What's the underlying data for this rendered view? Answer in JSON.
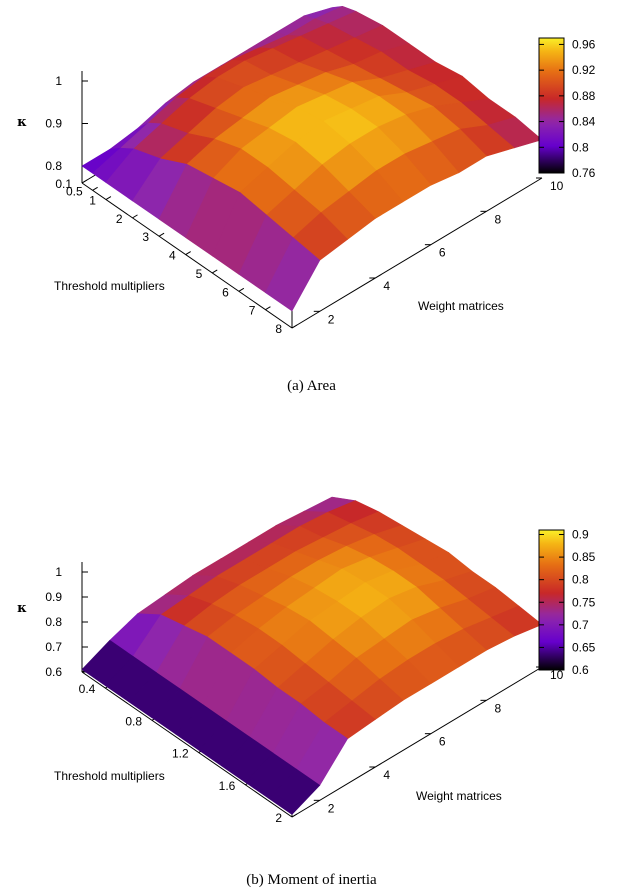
{
  "chart_data": [
    {
      "type": "surface3d",
      "caption": "(a) Area",
      "zlabel": "κ",
      "xlabel": "Threshold multipliers",
      "ylabel": "Weight matrices",
      "x_ticks": [
        "0.1",
        "0.5",
        "1",
        "2",
        "3",
        "4",
        "5",
        "6",
        "7",
        "8"
      ],
      "y_ticks": [
        "2",
        "4",
        "6",
        "8",
        "10"
      ],
      "z_ticks": [
        "0.8",
        "0.9",
        "1"
      ],
      "x_range": [
        0.1,
        8
      ],
      "y_range": [
        1,
        10
      ],
      "zlim": [
        0.76,
        1.0
      ],
      "colorbar": {
        "ticks": [
          "0.96",
          "0.92",
          "0.88",
          "0.84",
          "0.8",
          "0.76"
        ],
        "range": [
          0.76,
          0.97
        ],
        "palette": "black-purple-red-orange-yellow"
      },
      "x": [
        0.1,
        0.5,
        1,
        2,
        3,
        4,
        5,
        6,
        7,
        8
      ],
      "y": [
        1,
        2,
        3,
        4,
        5,
        6,
        7,
        8,
        9,
        10
      ],
      "z": [
        [
          0.8,
          0.8,
          0.8,
          0.8,
          0.8,
          0.8,
          0.8,
          0.8,
          0.8,
          0.8
        ],
        [
          0.8,
          0.82,
          0.84,
          0.86,
          0.89,
          0.9,
          0.91,
          0.9,
          0.89,
          0.88
        ],
        [
          0.81,
          0.84,
          0.86,
          0.88,
          0.91,
          0.93,
          0.93,
          0.92,
          0.91,
          0.89
        ],
        [
          0.83,
          0.86,
          0.88,
          0.9,
          0.92,
          0.94,
          0.95,
          0.94,
          0.92,
          0.9
        ],
        [
          0.84,
          0.87,
          0.89,
          0.91,
          0.93,
          0.95,
          0.96,
          0.95,
          0.93,
          0.9
        ],
        [
          0.84,
          0.87,
          0.89,
          0.9,
          0.92,
          0.94,
          0.95,
          0.95,
          0.93,
          0.9
        ],
        [
          0.84,
          0.86,
          0.88,
          0.89,
          0.91,
          0.93,
          0.94,
          0.94,
          0.92,
          0.89
        ],
        [
          0.84,
          0.85,
          0.87,
          0.88,
          0.89,
          0.9,
          0.91,
          0.92,
          0.91,
          0.89
        ],
        [
          0.84,
          0.85,
          0.86,
          0.87,
          0.88,
          0.88,
          0.89,
          0.89,
          0.88,
          0.87
        ],
        [
          0.82,
          0.84,
          0.85,
          0.86,
          0.86,
          0.86,
          0.87,
          0.86,
          0.86,
          0.85
        ]
      ]
    },
    {
      "type": "surface3d",
      "caption": "(b) Moment of inertia",
      "zlabel": "κ",
      "xlabel": "Threshold multipliers",
      "ylabel": "Weight matrices",
      "x_ticks": [
        "0.4",
        "0.8",
        "1.2",
        "1.6",
        "2"
      ],
      "y_ticks": [
        "2",
        "4",
        "6",
        "8",
        "10"
      ],
      "z_ticks": [
        "0.6",
        "0.7",
        "0.8",
        "0.9",
        "1"
      ],
      "x_range": [
        0.2,
        2
      ],
      "y_range": [
        1,
        10
      ],
      "zlim": [
        0.6,
        1.0
      ],
      "colorbar": {
        "ticks": [
          "0.9",
          "0.85",
          "0.8",
          "0.75",
          "0.7",
          "0.65",
          "0.6"
        ],
        "range": [
          0.6,
          0.91
        ],
        "palette": "black-purple-red-orange-yellow"
      },
      "x": [
        0.2,
        0.4,
        0.6,
        0.8,
        1.0,
        1.2,
        1.4,
        1.6,
        1.8,
        2.0
      ],
      "y": [
        1,
        2,
        3,
        4,
        5,
        6,
        7,
        8,
        9,
        10
      ],
      "z": [
        [
          0.61,
          0.61,
          0.61,
          0.61,
          0.61,
          0.61,
          0.61,
          0.61,
          0.61,
          0.61
        ],
        [
          0.66,
          0.66,
          0.66,
          0.66,
          0.66,
          0.66,
          0.66,
          0.66,
          0.66,
          0.66
        ],
        [
          0.7,
          0.76,
          0.78,
          0.8,
          0.8,
          0.8,
          0.79,
          0.79,
          0.78,
          0.78
        ],
        [
          0.71,
          0.77,
          0.8,
          0.82,
          0.83,
          0.83,
          0.82,
          0.81,
          0.8,
          0.79
        ],
        [
          0.72,
          0.78,
          0.81,
          0.83,
          0.85,
          0.86,
          0.85,
          0.84,
          0.82,
          0.8
        ],
        [
          0.72,
          0.78,
          0.81,
          0.84,
          0.86,
          0.87,
          0.87,
          0.85,
          0.83,
          0.8
        ],
        [
          0.72,
          0.78,
          0.81,
          0.84,
          0.87,
          0.88,
          0.88,
          0.86,
          0.83,
          0.8
        ],
        [
          0.72,
          0.78,
          0.8,
          0.83,
          0.85,
          0.86,
          0.86,
          0.84,
          0.82,
          0.8
        ],
        [
          0.71,
          0.77,
          0.79,
          0.81,
          0.82,
          0.82,
          0.82,
          0.81,
          0.8,
          0.79
        ],
        [
          0.7,
          0.75,
          0.77,
          0.78,
          0.79,
          0.8,
          0.79,
          0.79,
          0.78,
          0.77
        ]
      ]
    }
  ]
}
